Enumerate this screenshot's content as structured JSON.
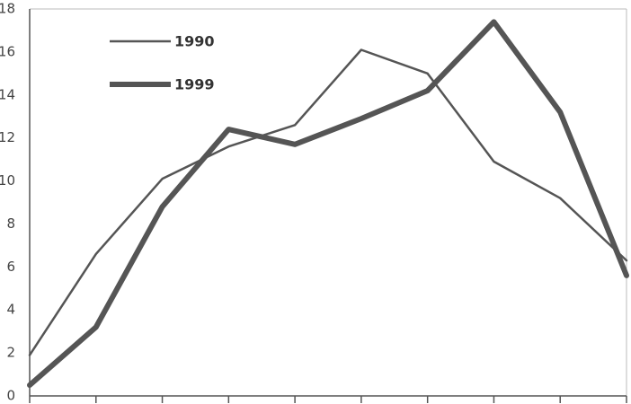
{
  "chart_data": {
    "type": "line",
    "categories": [
      null,
      null,
      null,
      null,
      null,
      null,
      null,
      null,
      null,
      null
    ],
    "series": [
      {
        "name": "1990",
        "color": "#555555",
        "width": 2.5,
        "values": [
          1.9,
          6.6,
          10.1,
          11.6,
          12.6,
          16.1,
          15.0,
          10.9,
          9.2,
          6.3
        ]
      },
      {
        "name": "1999",
        "color": "#555555",
        "width": 6,
        "values": [
          0.5,
          3.2,
          8.8,
          12.4,
          11.7,
          12.9,
          14.2,
          17.4,
          13.2,
          5.6
        ]
      }
    ],
    "ylim": [
      0,
      18
    ],
    "yticks": [
      0,
      2,
      4,
      6,
      8,
      10,
      12,
      14,
      16,
      18
    ],
    "grid": false
  }
}
